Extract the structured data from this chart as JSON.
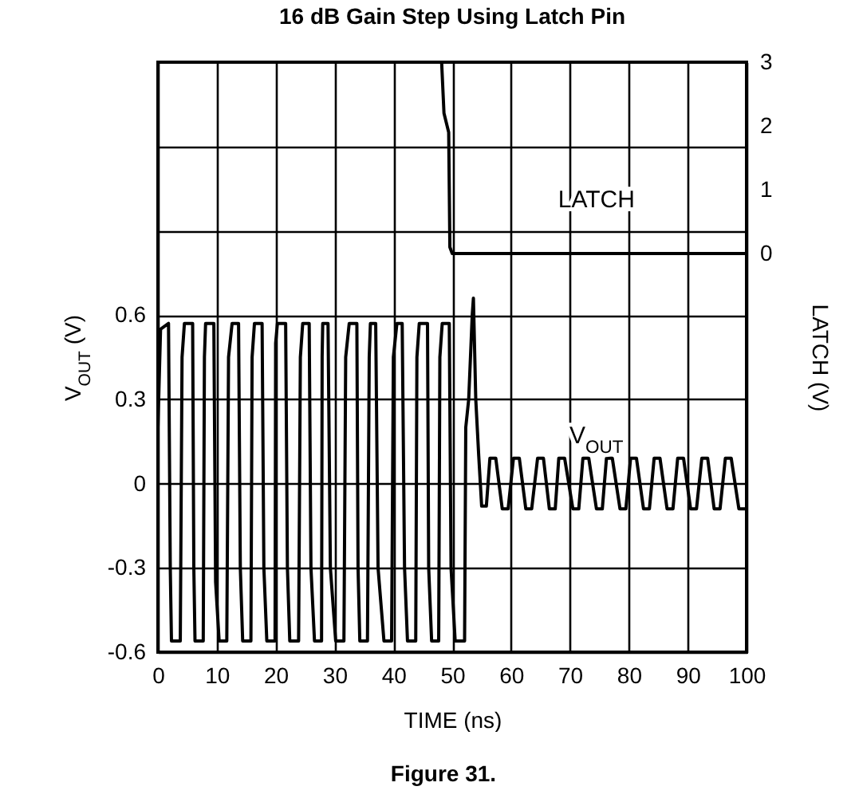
{
  "chart_data": {
    "type": "line",
    "title": "16 dB Gain Step Using Latch Pin",
    "xlabel": "TIME (ns)",
    "ylabel": "V$_{OUT}$ (V)",
    "y2label": "LATCH (V)",
    "annotations": [
      "Figure 31."
    ],
    "xlim": [
      0,
      100
    ],
    "xticks": [
      0,
      10,
      20,
      30,
      40,
      50,
      60,
      70,
      80,
      90,
      100
    ],
    "ylim": [
      -0.6,
      1.5
    ],
    "yticks": [
      -0.6,
      -0.3,
      0,
      0.3,
      0.6,
      {
        "value": 0.9,
        "label": null
      },
      {
        "value": 1.2,
        "label": null
      }
    ],
    "y2lim": [
      -6.25,
      3
    ],
    "y2ticks": [
      0,
      1,
      2,
      3
    ],
    "grid": true,
    "series": [
      {
        "name": "V$_{OUT}$",
        "color": "#000000",
        "axis": "y",
        "x": [
          0,
          0.45,
          1.8,
          2.1,
          2.3,
          3.8,
          4.1,
          4.5,
          5.9,
          6.1,
          6.3,
          7.7,
          7.9,
          8.1,
          9.5,
          9.8,
          10.4,
          11.7,
          12.0,
          12.6,
          13.7,
          14.0,
          14.4,
          15.8,
          16.0,
          16.4,
          17.7,
          18.0,
          18.5,
          19.9,
          20.0,
          20.3,
          21.7,
          22.0,
          22.4,
          23.9,
          24.2,
          24.6,
          25.7,
          26.0,
          26.6,
          27.8,
          27.9,
          28.0,
          28.9,
          29.3,
          30.2,
          31.6,
          31.9,
          32.5,
          33.8,
          34.0,
          34.3,
          35.6,
          35.9,
          36.1,
          37.0,
          37.4,
          38.4,
          39.7,
          40.0,
          40.6,
          41.5,
          41.9,
          42.4,
          43.8,
          44.0,
          44.4,
          45.8,
          46.0,
          46.5,
          47.7,
          47.9,
          48.3,
          49.5,
          49.8,
          50.5,
          52.1,
          52.3,
          52.8,
          53.4,
          53.6,
          54.0,
          54.5,
          55.0,
          55.8,
          56.4,
          57.4,
          58.5,
          59.5,
          60.4,
          61.4,
          62.5,
          63.5,
          64.5,
          65.5,
          66.5,
          67.5,
          68.1,
          69.1,
          70.5,
          71.5,
          72.2,
          73.2,
          74.5,
          75.5,
          76.2,
          77.2,
          78.5,
          79.5,
          80.3,
          81.3,
          82.5,
          83.5,
          84.3,
          85.3,
          86.5,
          87.5,
          88.3,
          89.3,
          90.5,
          91.5,
          92.4,
          93.4,
          94.5,
          95.5,
          96.4,
          97.4,
          98.7,
          100
        ],
        "values": [
          0.2,
          0.55,
          0.57,
          -0.3,
          -0.56,
          -0.56,
          0.45,
          0.57,
          0.57,
          -0.3,
          -0.56,
          -0.56,
          0.45,
          0.57,
          0.57,
          -0.35,
          -0.56,
          -0.56,
          0.45,
          0.57,
          0.57,
          -0.3,
          -0.56,
          -0.56,
          0.45,
          0.57,
          0.57,
          -0.3,
          -0.56,
          -0.56,
          0.5,
          0.57,
          0.57,
          -0.3,
          -0.56,
          -0.56,
          0.45,
          0.57,
          0.57,
          -0.3,
          -0.56,
          -0.56,
          0.45,
          0.57,
          0.57,
          -0.3,
          -0.56,
          -0.56,
          0.45,
          0.57,
          0.57,
          -0.3,
          -0.56,
          -0.56,
          0.45,
          0.57,
          0.57,
          -0.3,
          -0.56,
          -0.56,
          0.45,
          0.57,
          0.57,
          -0.3,
          -0.56,
          -0.56,
          0.45,
          0.57,
          0.57,
          -0.3,
          -0.56,
          -0.56,
          0.45,
          0.57,
          0.57,
          -0.3,
          -0.56,
          -0.56,
          0.2,
          0.3,
          0.6,
          0.66,
          0.3,
          0.1,
          -0.08,
          -0.08,
          0.09,
          0.09,
          -0.09,
          -0.09,
          0.09,
          0.09,
          -0.09,
          -0.09,
          0.09,
          0.09,
          -0.09,
          -0.09,
          0.09,
          0.09,
          -0.09,
          -0.09,
          0.09,
          0.09,
          -0.09,
          -0.09,
          0.09,
          0.09,
          -0.09,
          -0.09,
          0.09,
          0.09,
          -0.09,
          -0.09,
          0.09,
          0.09,
          -0.09,
          -0.09,
          0.09,
          0.09,
          -0.09,
          -0.09,
          0.09,
          0.09,
          -0.09,
          -0.09,
          0.09,
          0.09,
          -0.09,
          -0.09
        ]
      },
      {
        "name": "LATCH",
        "color": "#000000",
        "axis": "y2",
        "x": [
          0,
          48.2,
          48.6,
          49.4,
          49.6,
          50,
          100
        ],
        "values": [
          3,
          3,
          2.2,
          1.9,
          0.1,
          0,
          0
        ]
      }
    ]
  }
}
